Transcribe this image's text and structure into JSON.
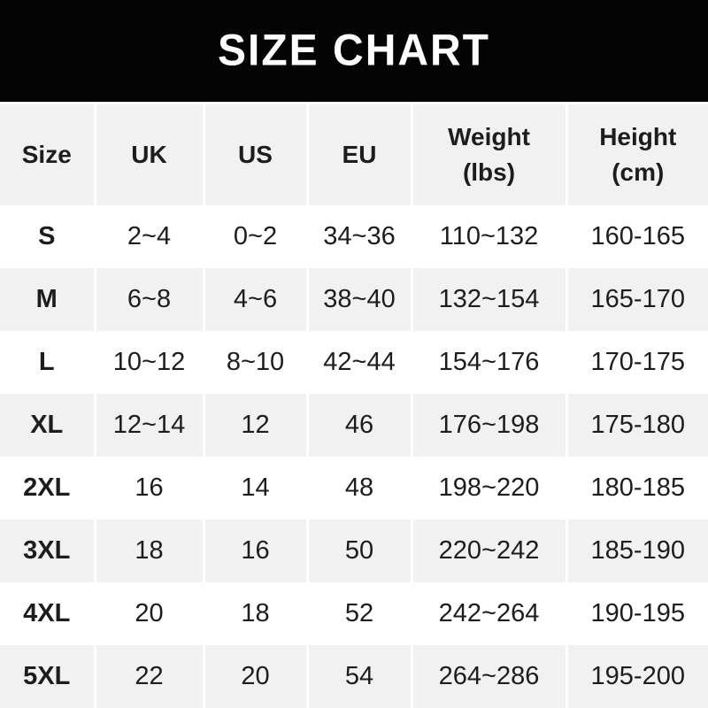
{
  "banner": {
    "title": "SIZE CHART",
    "bg_color": "#040404",
    "text_color": "#ffffff"
  },
  "style": {
    "row_alt_bg": "#f1f1f2",
    "row_bg": "#ffffff",
    "text_color": "#1d1d1f",
    "divider_color": "#ffffff"
  },
  "table_header": [
    {
      "line1": "Size"
    },
    {
      "line1": "UK"
    },
    {
      "line1": "US"
    },
    {
      "line1": "EU"
    },
    {
      "line1": "Weight",
      "line2": "(lbs)"
    },
    {
      "line1": "Height",
      "line2": "(cm)"
    }
  ],
  "chart_data": {
    "type": "table",
    "title": "SIZE CHART",
    "columns": [
      "Size",
      "UK",
      "US",
      "EU",
      "Weight (lbs)",
      "Height (cm)"
    ],
    "rows": [
      [
        "S",
        "2~4",
        "0~2",
        "34~36",
        "110~132",
        "160-165"
      ],
      [
        "M",
        "6~8",
        "4~6",
        "38~40",
        "132~154",
        "165-170"
      ],
      [
        "L",
        "10~12",
        "8~10",
        "42~44",
        "154~176",
        "170-175"
      ],
      [
        "XL",
        "12~14",
        "12",
        "46",
        "176~198",
        "175-180"
      ],
      [
        "2XL",
        "16",
        "14",
        "48",
        "198~220",
        "180-185"
      ],
      [
        "3XL",
        "18",
        "16",
        "50",
        "220~242",
        "185-190"
      ],
      [
        "4XL",
        "20",
        "18",
        "52",
        "242~264",
        "190-195"
      ],
      [
        "5XL",
        "22",
        "20",
        "54",
        "264~286",
        "195-200"
      ]
    ]
  }
}
